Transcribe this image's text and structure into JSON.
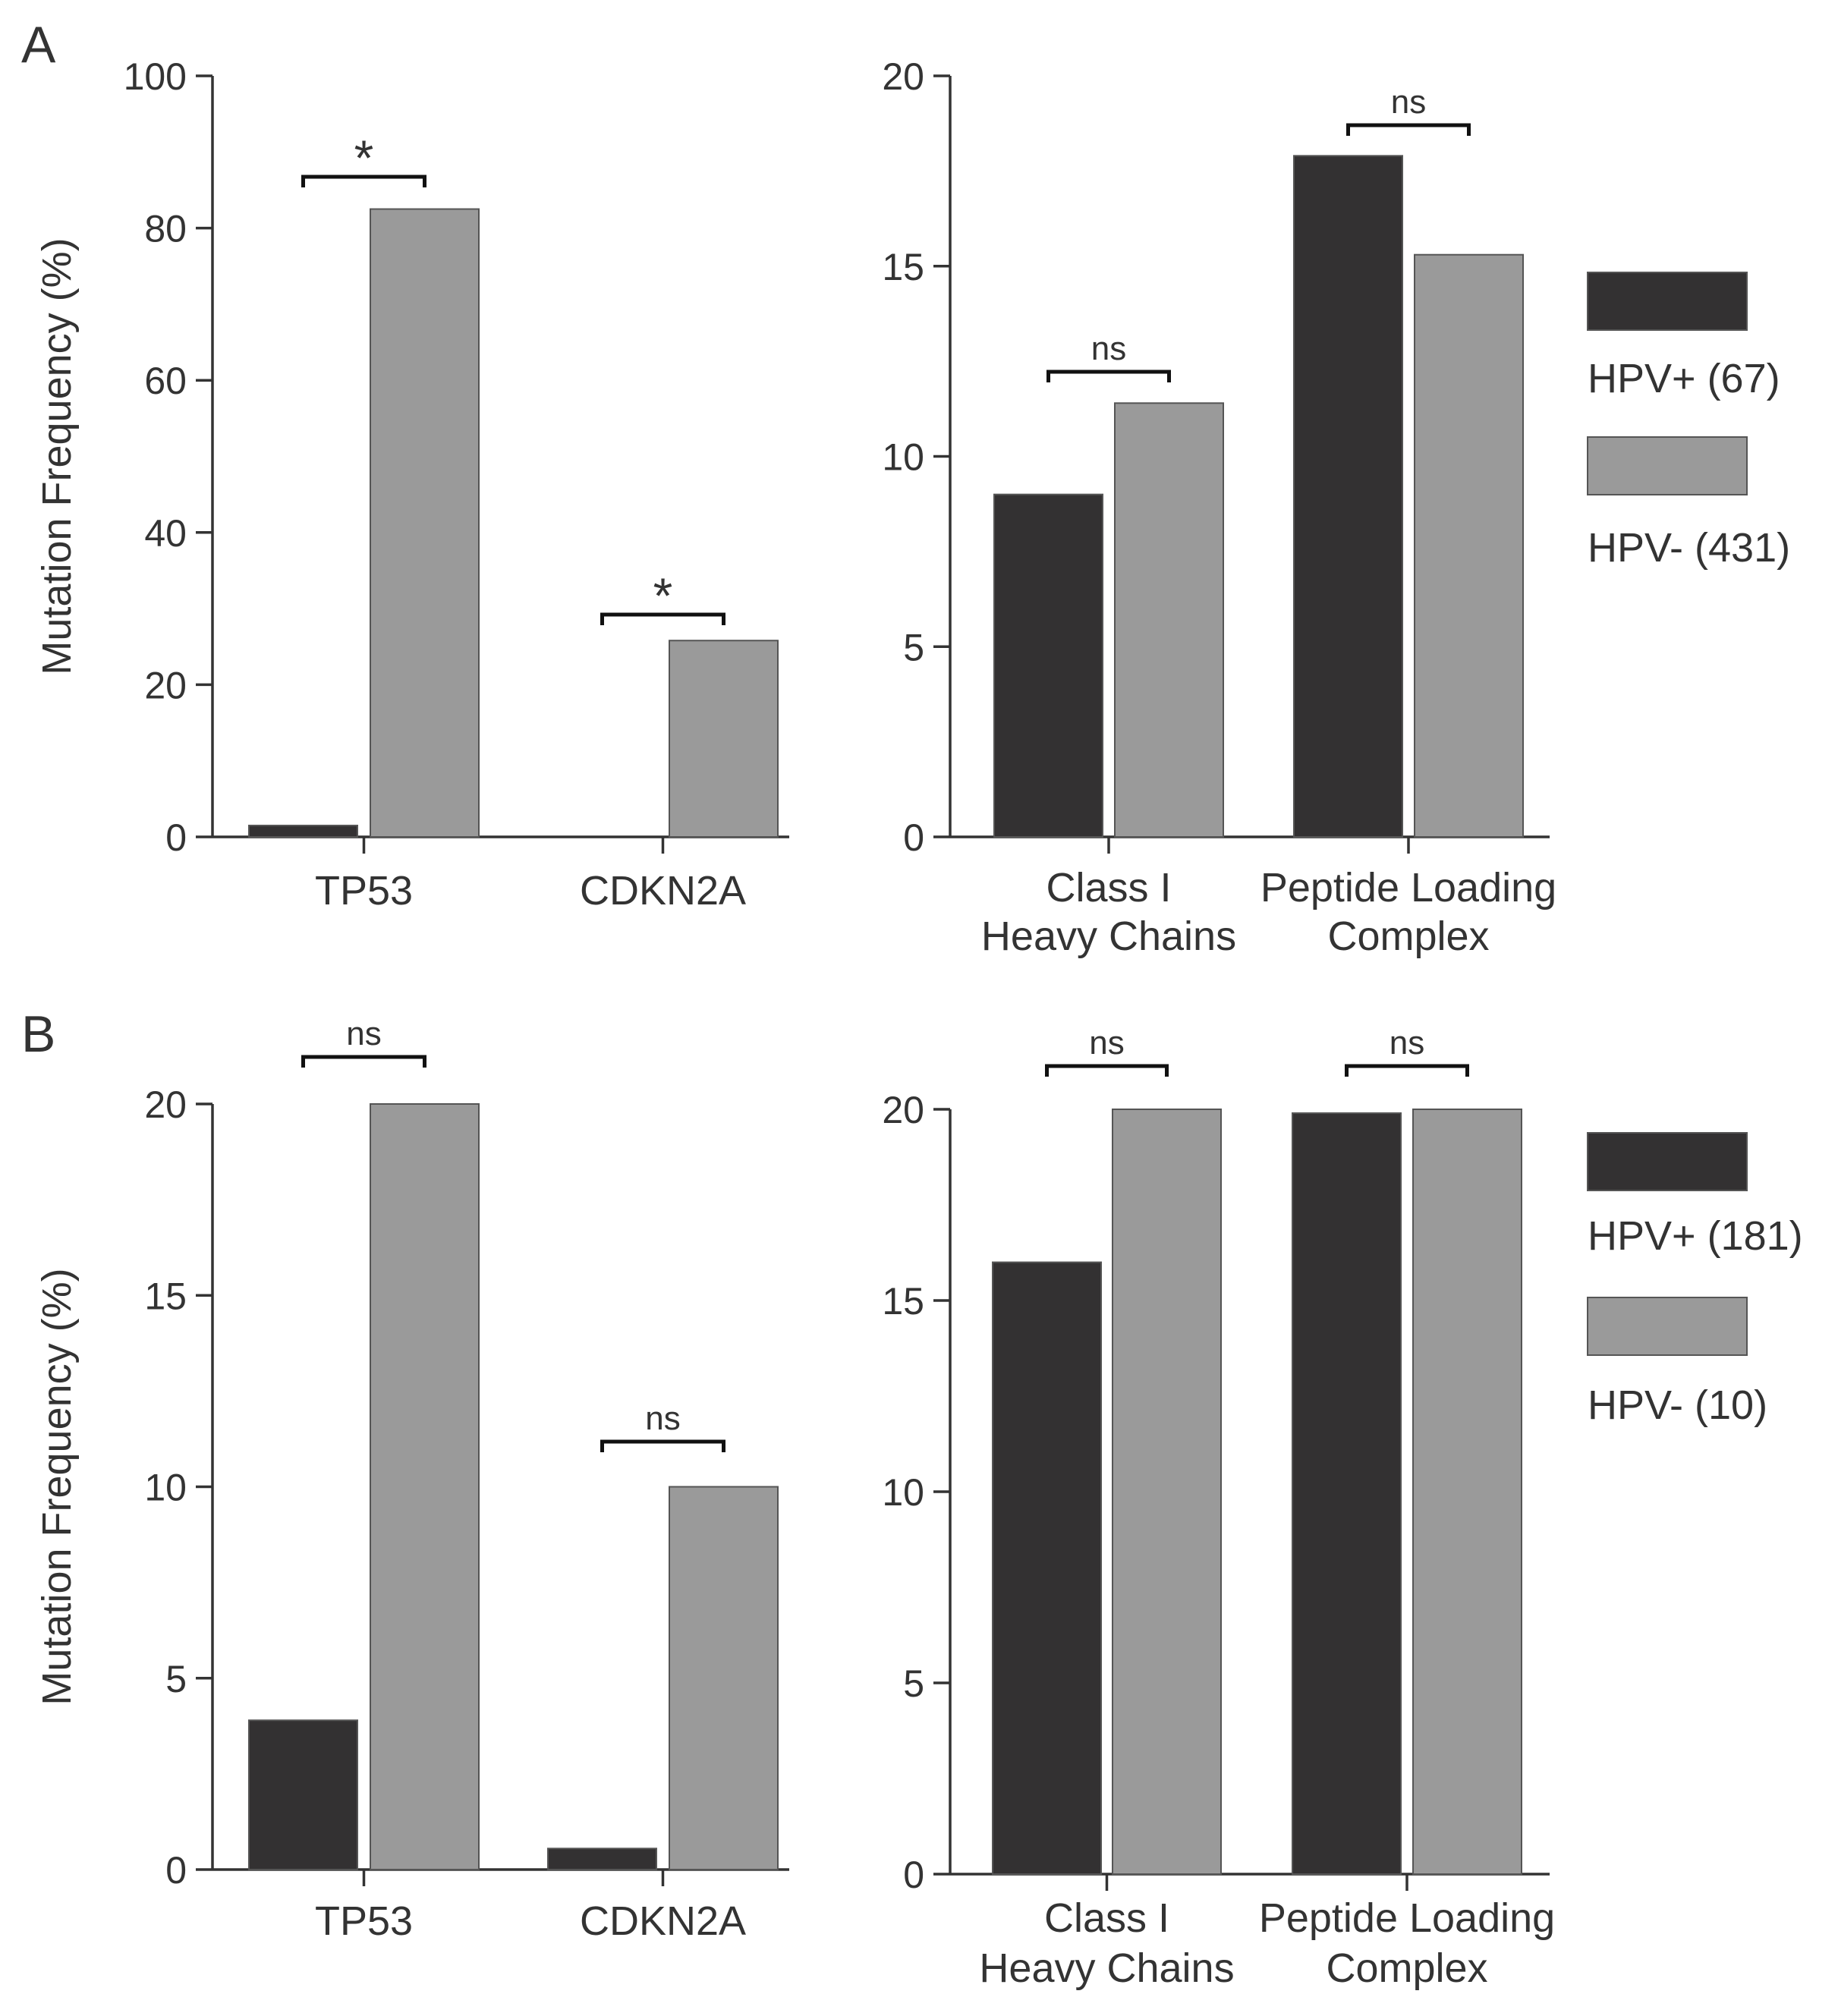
{
  "colors": {
    "hpv_pos": "#333132",
    "hpv_neg": "#9a9a9a",
    "axis": "#333333"
  },
  "panels": [
    {
      "letter": "A"
    },
    {
      "letter": "B"
    }
  ],
  "chart_data": [
    {
      "type": "bar",
      "panel": "A",
      "ylabel": "Mutation Frequency (%)",
      "ylim": [
        0,
        100
      ],
      "yticks": [
        0,
        20,
        40,
        60,
        80,
        100
      ],
      "categories": [
        "TP53",
        "CDKN2A"
      ],
      "series": [
        {
          "name": "HPV+",
          "values": [
            1.5,
            0
          ]
        },
        {
          "name": "HPV-",
          "values": [
            82.5,
            25.8
          ]
        }
      ],
      "significance": [
        "*",
        "*"
      ]
    },
    {
      "type": "bar",
      "panel": "A",
      "ylabel": "",
      "ylim": [
        0,
        20
      ],
      "yticks": [
        0,
        5,
        10,
        15,
        20
      ],
      "categories": [
        [
          "Class I",
          "Heavy Chains"
        ],
        [
          "Peptide Loading",
          "Complex"
        ]
      ],
      "series": [
        {
          "name": "HPV+",
          "values": [
            9.0,
            17.9
          ]
        },
        {
          "name": "HPV-",
          "values": [
            11.4,
            15.3
          ]
        }
      ],
      "significance": [
        "ns",
        "ns"
      ],
      "legend": {
        "position": "right",
        "entries": [
          "HPV+ (67)",
          "HPV- (431)"
        ]
      }
    },
    {
      "type": "bar",
      "panel": "B",
      "ylabel": "Mutation Frequency (%)",
      "ylim": [
        0,
        20
      ],
      "yticks": [
        0,
        5,
        10,
        15,
        20
      ],
      "categories": [
        "TP53",
        "CDKN2A"
      ],
      "series": [
        {
          "name": "HPV+",
          "values": [
            3.9,
            0.55
          ]
        },
        {
          "name": "HPV-",
          "values": [
            20.0,
            10.0
          ]
        }
      ],
      "significance": [
        "ns",
        "ns"
      ]
    },
    {
      "type": "bar",
      "panel": "B",
      "ylabel": "",
      "ylim": [
        0,
        20
      ],
      "yticks": [
        0,
        5,
        10,
        15,
        20
      ],
      "categories": [
        [
          "Class I",
          "Heavy Chains"
        ],
        [
          "Peptide Loading",
          "Complex"
        ]
      ],
      "series": [
        {
          "name": "HPV+",
          "values": [
            16.0,
            19.9
          ]
        },
        {
          "name": "HPV-",
          "values": [
            20.0,
            20.0
          ]
        }
      ],
      "significance": [
        "ns",
        "ns"
      ],
      "legend": {
        "position": "right",
        "entries": [
          "HPV+ (181)",
          "HPV- (10)"
        ]
      }
    }
  ]
}
